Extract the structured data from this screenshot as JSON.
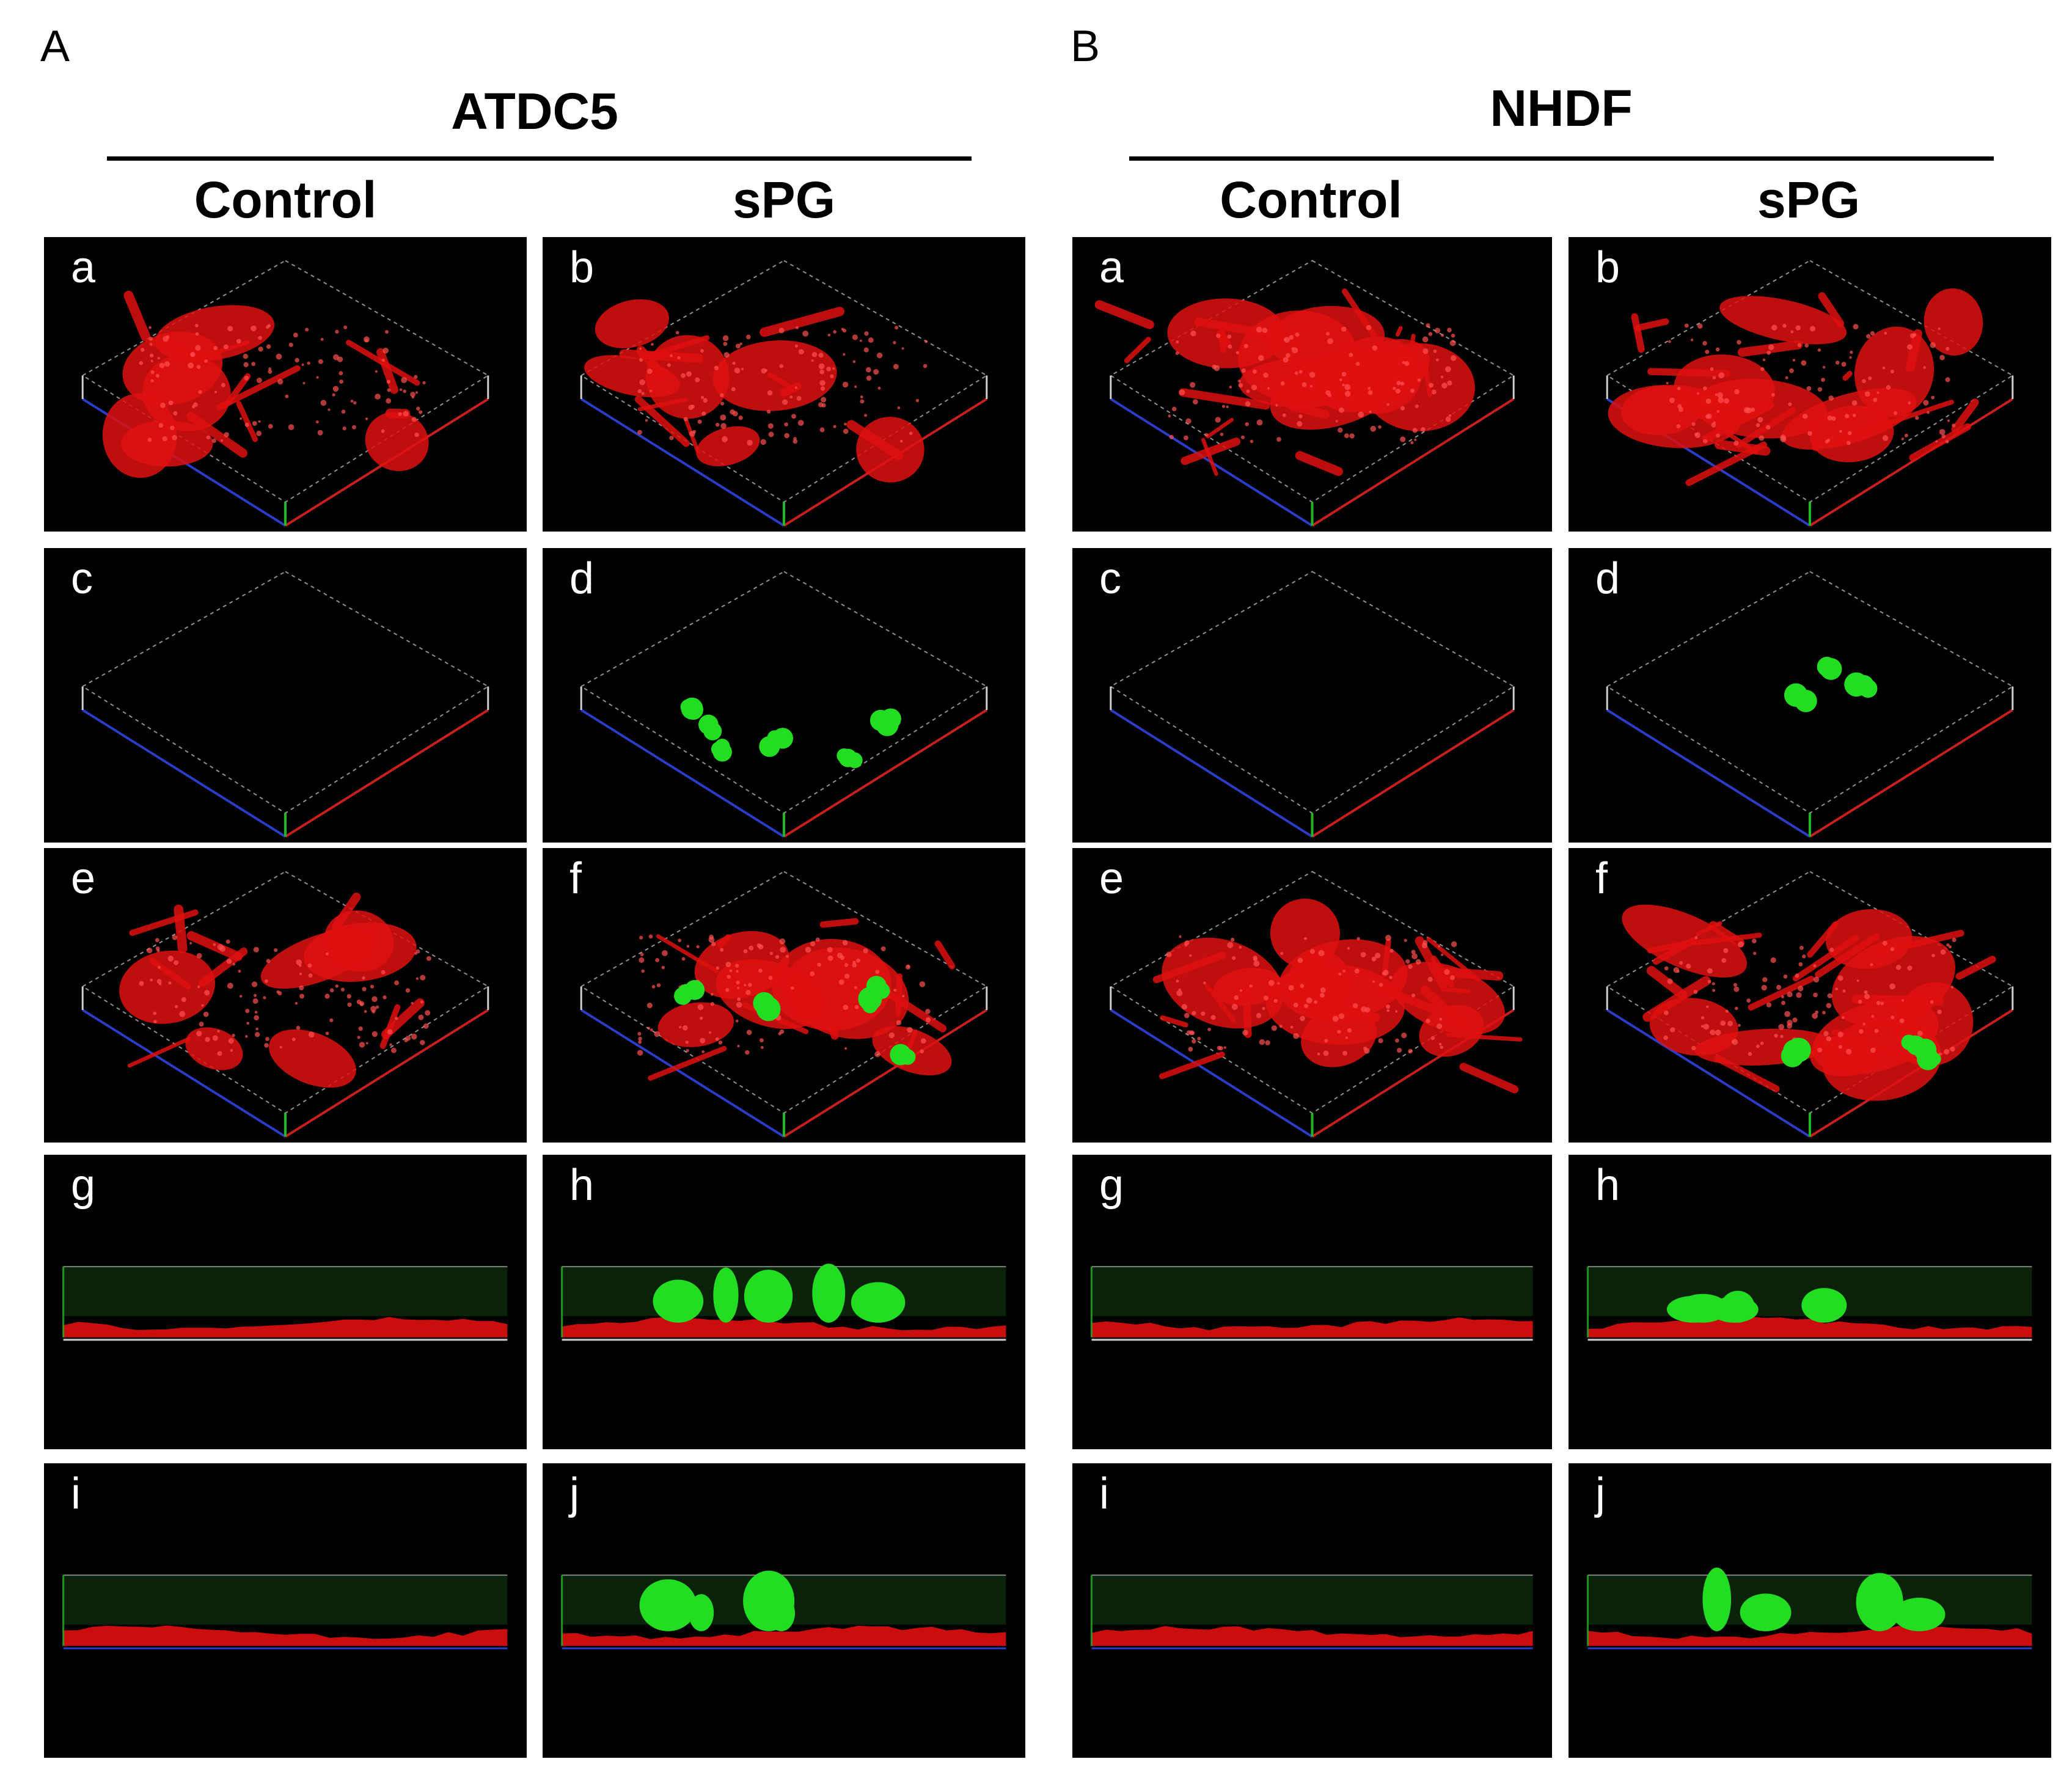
{
  "figure": {
    "sections": [
      {
        "letter": "A",
        "cell_line": "ATDC5",
        "columns": [
          "Control",
          "sPG"
        ],
        "panels": [
          [
            "a",
            "b"
          ],
          [
            "c",
            "d"
          ],
          [
            "e",
            "f"
          ],
          [
            "g",
            "h"
          ],
          [
            "i",
            "j"
          ]
        ]
      },
      {
        "letter": "B",
        "cell_line": "NHDF",
        "columns": [
          "Control",
          "sPG"
        ],
        "panels": [
          [
            "a",
            "b"
          ],
          [
            "c",
            "d"
          ],
          [
            "e",
            "f"
          ],
          [
            "g",
            "h"
          ],
          [
            "i",
            "j"
          ]
        ]
      }
    ],
    "colors": {
      "background": "#000000",
      "red_channel": "#e01010",
      "green_channel": "#22dd22",
      "axis_blue": "#2a3cc8",
      "axis_red": "#c81e1e",
      "axis_green": "#1fb81f",
      "frame_white": "#cfcfcf"
    }
  }
}
